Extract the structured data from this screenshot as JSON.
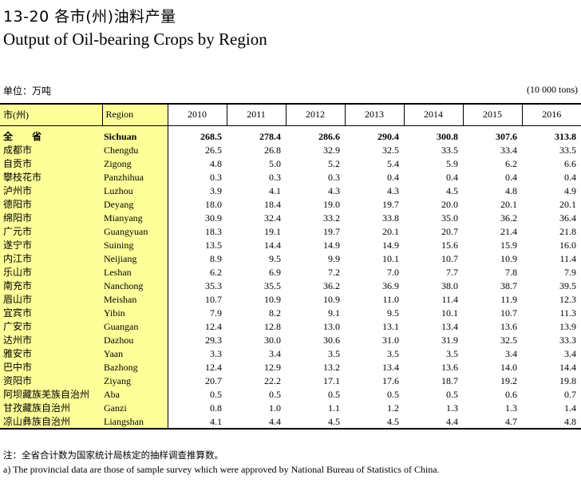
{
  "header": {
    "title_cn": "13-20  各市(州)油料产量",
    "title_en": "Output of Oil-bearing Crops by Region",
    "unit_cn": "单位：万吨",
    "unit_en": "(10 000 tons)"
  },
  "table": {
    "col_city": "市(州)",
    "col_region": "Region",
    "years": [
      "2010",
      "2011",
      "2012",
      "2013",
      "2014",
      "2015",
      "2016"
    ],
    "rows": [
      {
        "city": "全 省",
        "region": "Sichuan",
        "values": [
          "268.5",
          "278.4",
          "286.6",
          "290.4",
          "300.8",
          "307.6",
          "313.8"
        ]
      },
      {
        "city": "成都市",
        "region": "Chengdu",
        "values": [
          "26.5",
          "26.8",
          "32.9",
          "32.5",
          "33.5",
          "33.4",
          "33.5"
        ]
      },
      {
        "city": "自贡市",
        "region": "Zigong",
        "values": [
          "4.8",
          "5.0",
          "5.2",
          "5.4",
          "5.9",
          "6.2",
          "6.6"
        ]
      },
      {
        "city": "攀枝花市",
        "region": "Panzhihua",
        "values": [
          "0.3",
          "0.3",
          "0.3",
          "0.4",
          "0.4",
          "0.4",
          "0.4"
        ]
      },
      {
        "city": "泸州市",
        "region": "Luzhou",
        "values": [
          "3.9",
          "4.1",
          "4.3",
          "4.3",
          "4.5",
          "4.8",
          "4.9"
        ]
      },
      {
        "city": "德阳市",
        "region": "Deyang",
        "values": [
          "18.0",
          "18.4",
          "19.0",
          "19.7",
          "20.0",
          "20.1",
          "20.1"
        ]
      },
      {
        "city": "绵阳市",
        "region": "Mianyang",
        "values": [
          "30.9",
          "32.4",
          "33.2",
          "33.8",
          "35.0",
          "36.2",
          "36.4"
        ]
      },
      {
        "city": "广元市",
        "region": "Guangyuan",
        "values": [
          "18.3",
          "19.1",
          "19.7",
          "20.1",
          "20.7",
          "21.4",
          "21.8"
        ]
      },
      {
        "city": "遂宁市",
        "region": "Suining",
        "values": [
          "13.5",
          "14.4",
          "14.9",
          "14.9",
          "15.6",
          "15.9",
          "16.0"
        ]
      },
      {
        "city": "内江市",
        "region": "Neijiang",
        "values": [
          "8.9",
          "9.5",
          "9.9",
          "10.1",
          "10.7",
          "10.9",
          "11.4"
        ]
      },
      {
        "city": "乐山市",
        "region": "Leshan",
        "values": [
          "6.2",
          "6.9",
          "7.2",
          "7.0",
          "7.7",
          "7.8",
          "7.9"
        ]
      },
      {
        "city": "南充市",
        "region": "Nanchong",
        "values": [
          "35.3",
          "35.5",
          "36.2",
          "36.9",
          "38.0",
          "38.7",
          "39.5"
        ]
      },
      {
        "city": "眉山市",
        "region": "Meishan",
        "values": [
          "10.7",
          "10.9",
          "10.9",
          "11.0",
          "11.4",
          "11.9",
          "12.3"
        ]
      },
      {
        "city": "宜宾市",
        "region": "Yibin",
        "values": [
          "7.9",
          "8.2",
          "9.1",
          "9.5",
          "10.1",
          "10.7",
          "11.3"
        ]
      },
      {
        "city": "广安市",
        "region": "Guangan",
        "values": [
          "12.4",
          "12.8",
          "13.0",
          "13.1",
          "13.4",
          "13.6",
          "13.9"
        ]
      },
      {
        "city": "达州市",
        "region": "Dazhou",
        "values": [
          "29.3",
          "30.0",
          "30.6",
          "31.0",
          "31.9",
          "32.5",
          "33.3"
        ]
      },
      {
        "city": "雅安市",
        "region": "Yaan",
        "values": [
          "3.3",
          "3.4",
          "3.5",
          "3.5",
          "3.5",
          "3.4",
          "3.4"
        ]
      },
      {
        "city": "巴中市",
        "region": "Bazhong",
        "values": [
          "12.4",
          "12.9",
          "13.2",
          "13.4",
          "13.6",
          "14.0",
          "14.4"
        ]
      },
      {
        "city": "资阳市",
        "region": "Ziyang",
        "values": [
          "20.7",
          "22.2",
          "17.1",
          "17.6",
          "18.7",
          "19.2",
          "19.8"
        ]
      },
      {
        "city": "阿坝藏族羌族自治州",
        "region": "Aba",
        "values": [
          "0.5",
          "0.5",
          "0.5",
          "0.5",
          "0.5",
          "0.6",
          "0.7"
        ]
      },
      {
        "city": "甘孜藏族自治州",
        "region": "Ganzi",
        "values": [
          "0.8",
          "1.0",
          "1.1",
          "1.2",
          "1.3",
          "1.3",
          "1.4"
        ]
      },
      {
        "city": "凉山彝族自治州",
        "region": "Liangshan",
        "values": [
          "4.1",
          "4.4",
          "4.5",
          "4.5",
          "4.4",
          "4.7",
          "4.8"
        ]
      }
    ]
  },
  "notes": {
    "cn": "注：全省合计数为国家统计局核定的抽样调查推算数。",
    "en": "a) The provincial data are those of sample survey which were approved by National Bureau of Statistics of China."
  }
}
